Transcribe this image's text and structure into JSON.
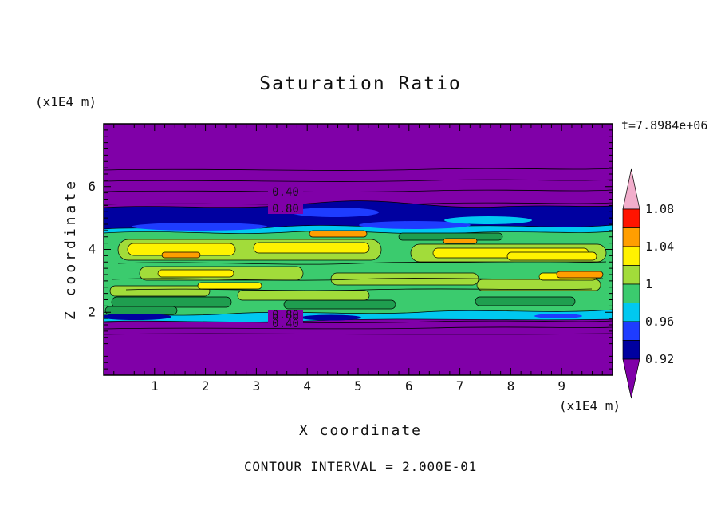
{
  "title": "Saturation Ratio",
  "time_label": "t=7.8984e+06",
  "footer": {
    "contour_interval_label": "CONTOUR INTERVAL = 2.000E-01"
  },
  "axes": {
    "x_title": "X coordinate",
    "z_title": "Z coordinate",
    "x_units": "(x1E4 m)",
    "z_units": "(x1E4 m)"
  },
  "chart_data": {
    "type": "heatmap",
    "subtype": "filled-contour",
    "title": "Saturation Ratio",
    "xlabel": "X coordinate (x1E4 m)",
    "ylabel": "Z coordinate (x1E4 m)",
    "xlim": [
      0,
      10
    ],
    "zlim": [
      0,
      8
    ],
    "x_ticks": [
      1,
      2,
      3,
      4,
      5,
      6,
      7,
      8,
      9
    ],
    "z_ticks": [
      2,
      4,
      6
    ],
    "minor_tick_step": 0.2,
    "time": "7.8984e+06",
    "contour_interval": "2.000E-01",
    "grid": false,
    "legend_position": "right-colorbar",
    "colorbar": {
      "levels_labels": [
        "1.08",
        "1.04",
        "1",
        "0.96",
        "0.92"
      ],
      "levels": [
        1.08,
        1.04,
        1.0,
        0.96,
        0.92
      ],
      "band_colors_top_to_bottom": [
        "#FF1400",
        "#FF9E00",
        "#FFF200",
        "#A2DC3A",
        "#3BCB6E",
        "#00C8F0",
        "#1E3CFF",
        "#0000A0"
      ],
      "above_color": "#F2AECC",
      "below_color": "#8000A8"
    },
    "line_contour_labels": {
      "upper": [
        "0.40",
        "0.80"
      ],
      "lower": [
        "0.80",
        "0.20",
        "0.40"
      ]
    },
    "field_bands": [
      {
        "z_range": [
          5.6,
          8.0
        ],
        "saturation": "< 0.40 (dry, purple)"
      },
      {
        "z_range": [
          4.7,
          5.6
        ],
        "saturation": "0.90-0.96 (dark blue band)"
      },
      {
        "z_range": [
          4.4,
          4.8
        ],
        "saturation": "0.96-0.98 (cyan fringe)"
      },
      {
        "z_range": [
          2.0,
          4.4
        ],
        "saturation": "0.98-1.08 (mottled green/yellow/orange core)"
      },
      {
        "z_range": [
          1.5,
          2.0
        ],
        "saturation": "0.90-0.98 (thin fringe)"
      },
      {
        "z_range": [
          0.0,
          1.5
        ],
        "saturation": "< 0.40 (dry, purple)"
      }
    ],
    "colors": {
      "purple": "#8000A8",
      "navy": "#0000A0",
      "blue": "#1E3CFF",
      "cyan": "#00C8F0",
      "green": "#3BCB6E",
      "dark_green": "#1F9E4F",
      "chartreuse": "#A2DC3A",
      "yellow": "#FFF200",
      "orange": "#FF9E00",
      "red": "#FF1400",
      "pink": "#F2AECC",
      "text": "#111111"
    }
  }
}
